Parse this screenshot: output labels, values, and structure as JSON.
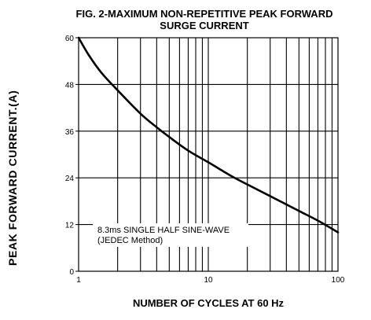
{
  "chart_data": {
    "type": "line",
    "title": "FIG. 2-MAXIMUM NON-REPETITIVE PEAK FORWARD",
    "subtitle": "SURGE CURRENT",
    "xlabel": "NUMBER OF CYCLES AT 60 Hz",
    "ylabel": "PEAK  FORWARD CURRENT.(A)",
    "x_scale": "log",
    "xlim": [
      1,
      100
    ],
    "ylim": [
      0,
      60
    ],
    "x_ticks": [
      "1",
      "10",
      "100"
    ],
    "y_ticks": [
      "0",
      "12",
      "24",
      "36",
      "48",
      "60"
    ],
    "grid": true,
    "annotation": [
      "8.3ms SINGLE HALF SINE-WAVE",
      "(JEDEC Method)"
    ],
    "series": [
      {
        "x": [
          1,
          1.2,
          1.5,
          2,
          3,
          4,
          5,
          7,
          10,
          15,
          20,
          30,
          50,
          70,
          100
        ],
        "y": [
          60,
          55.5,
          51,
          46.5,
          40.5,
          37,
          34.5,
          31,
          28,
          24.5,
          22.3,
          19.3,
          15.5,
          13,
          10
        ]
      }
    ]
  }
}
